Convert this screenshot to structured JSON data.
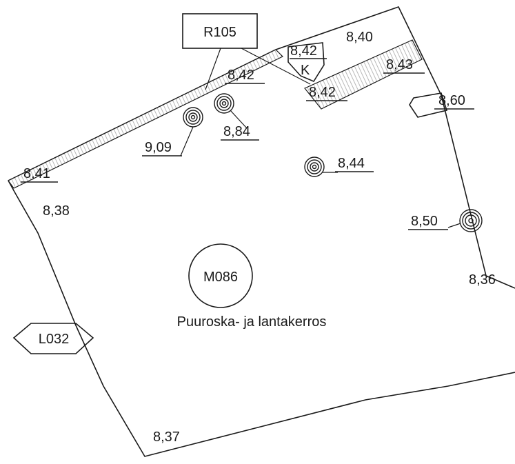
{
  "labels": {
    "r105": "R105",
    "m086": "M086",
    "l032": "L032",
    "k": "K",
    "caption": "Puuroska- ja lantakerros"
  },
  "elevations": {
    "e_840": "8,40",
    "e_842_top": "8,42",
    "e_843": "8,43",
    "e_842_mid": "8,42",
    "e_842_right": "8,42",
    "e_860": "8,60",
    "e_884": "8,84",
    "e_909": "9,09",
    "e_844": "8,44",
    "e_841": "8,41",
    "e_838": "8,38",
    "e_850": "8,50",
    "e_836": "8,36",
    "e_837": "8,37"
  },
  "colors": {
    "ink": "#1a1a1a",
    "hatch": "#b8b8b8",
    "paper": "#ffffff"
  }
}
